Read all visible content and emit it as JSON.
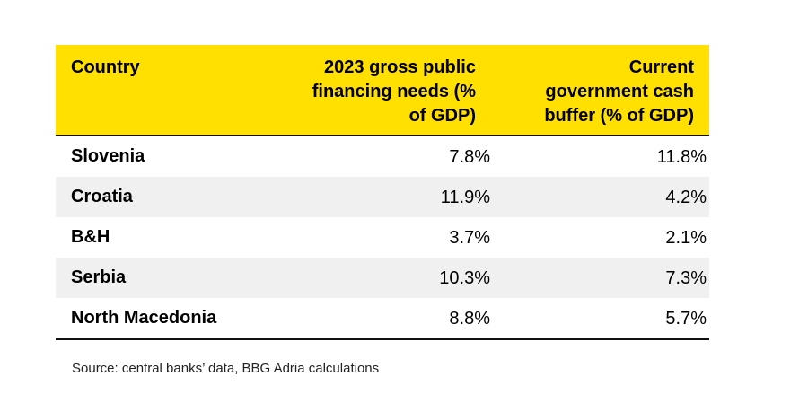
{
  "table": {
    "headers": {
      "country": "Country",
      "col2_lines": [
        "2023 gross public",
        "financing needs (%",
        "of GDP)"
      ],
      "col3_lines": [
        "Current",
        "government cash",
        "buffer (% of GDP)"
      ]
    },
    "rows": [
      {
        "country": "Slovenia",
        "financing_needs": "7.8%",
        "cash_buffer": "11.8%"
      },
      {
        "country": "Croatia",
        "financing_needs": "11.9%",
        "cash_buffer": "4.2%"
      },
      {
        "country": "B&H",
        "financing_needs": "3.7%",
        "cash_buffer": "2.1%"
      },
      {
        "country": "Serbia",
        "financing_needs": "10.3%",
        "cash_buffer": "7.3%"
      },
      {
        "country": "North Macedonia",
        "financing_needs": "8.8%",
        "cash_buffer": "5.7%"
      }
    ],
    "header_color": "#ffe000",
    "shaded_row_color": "#f0f0f0"
  },
  "source": "Source: central banks’ data, BBG Adria calculations"
}
